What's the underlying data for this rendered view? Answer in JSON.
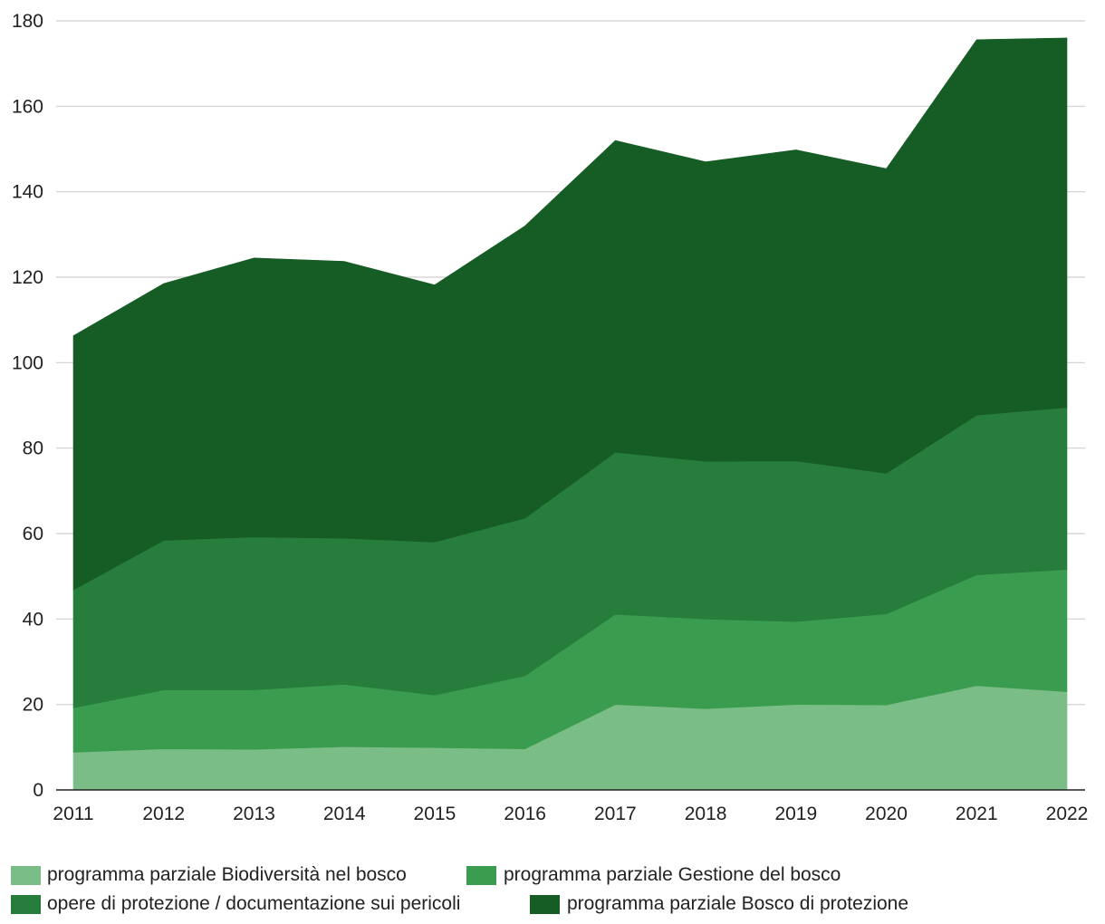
{
  "chart_data": {
    "type": "area",
    "stacked": true,
    "title": "",
    "xlabel": "",
    "ylabel": "",
    "categories": [
      "2011",
      "2012",
      "2013",
      "2014",
      "2015",
      "2016",
      "2017",
      "2018",
      "2019",
      "2020",
      "2021",
      "2022"
    ],
    "ylim": [
      0,
      180
    ],
    "yticks": [
      0,
      20,
      40,
      60,
      80,
      100,
      120,
      140,
      160,
      180
    ],
    "grid": true,
    "legend_position": "bottom",
    "series": [
      {
        "name": "programma parziale Biodiversità nel bosco",
        "color": "#7bbd87",
        "values": [
          8.8,
          9.6,
          9.5,
          10.1,
          9.9,
          9.6,
          20.0,
          19.0,
          20.0,
          19.9,
          24.4,
          23.0
        ]
      },
      {
        "name": "programma parziale Gestione del bosco",
        "color": "#3a9c4e",
        "values": [
          10.4,
          13.8,
          13.9,
          14.6,
          12.3,
          17.1,
          21.1,
          21.0,
          19.4,
          21.3,
          25.9,
          28.6
        ]
      },
      {
        "name": "opere di protezione / documentazione sui pericoli",
        "color": "#277d3c",
        "values": [
          27.6,
          35.0,
          35.8,
          34.2,
          35.8,
          36.9,
          37.9,
          36.9,
          37.6,
          32.9,
          37.4,
          37.9
        ]
      },
      {
        "name": "programma parziale Bosco di protezione",
        "color": "#165c25",
        "values": [
          59.5,
          60.1,
          65.3,
          64.8,
          60.2,
          68.4,
          73.0,
          70.1,
          72.8,
          71.3,
          87.9,
          86.5
        ]
      }
    ]
  }
}
